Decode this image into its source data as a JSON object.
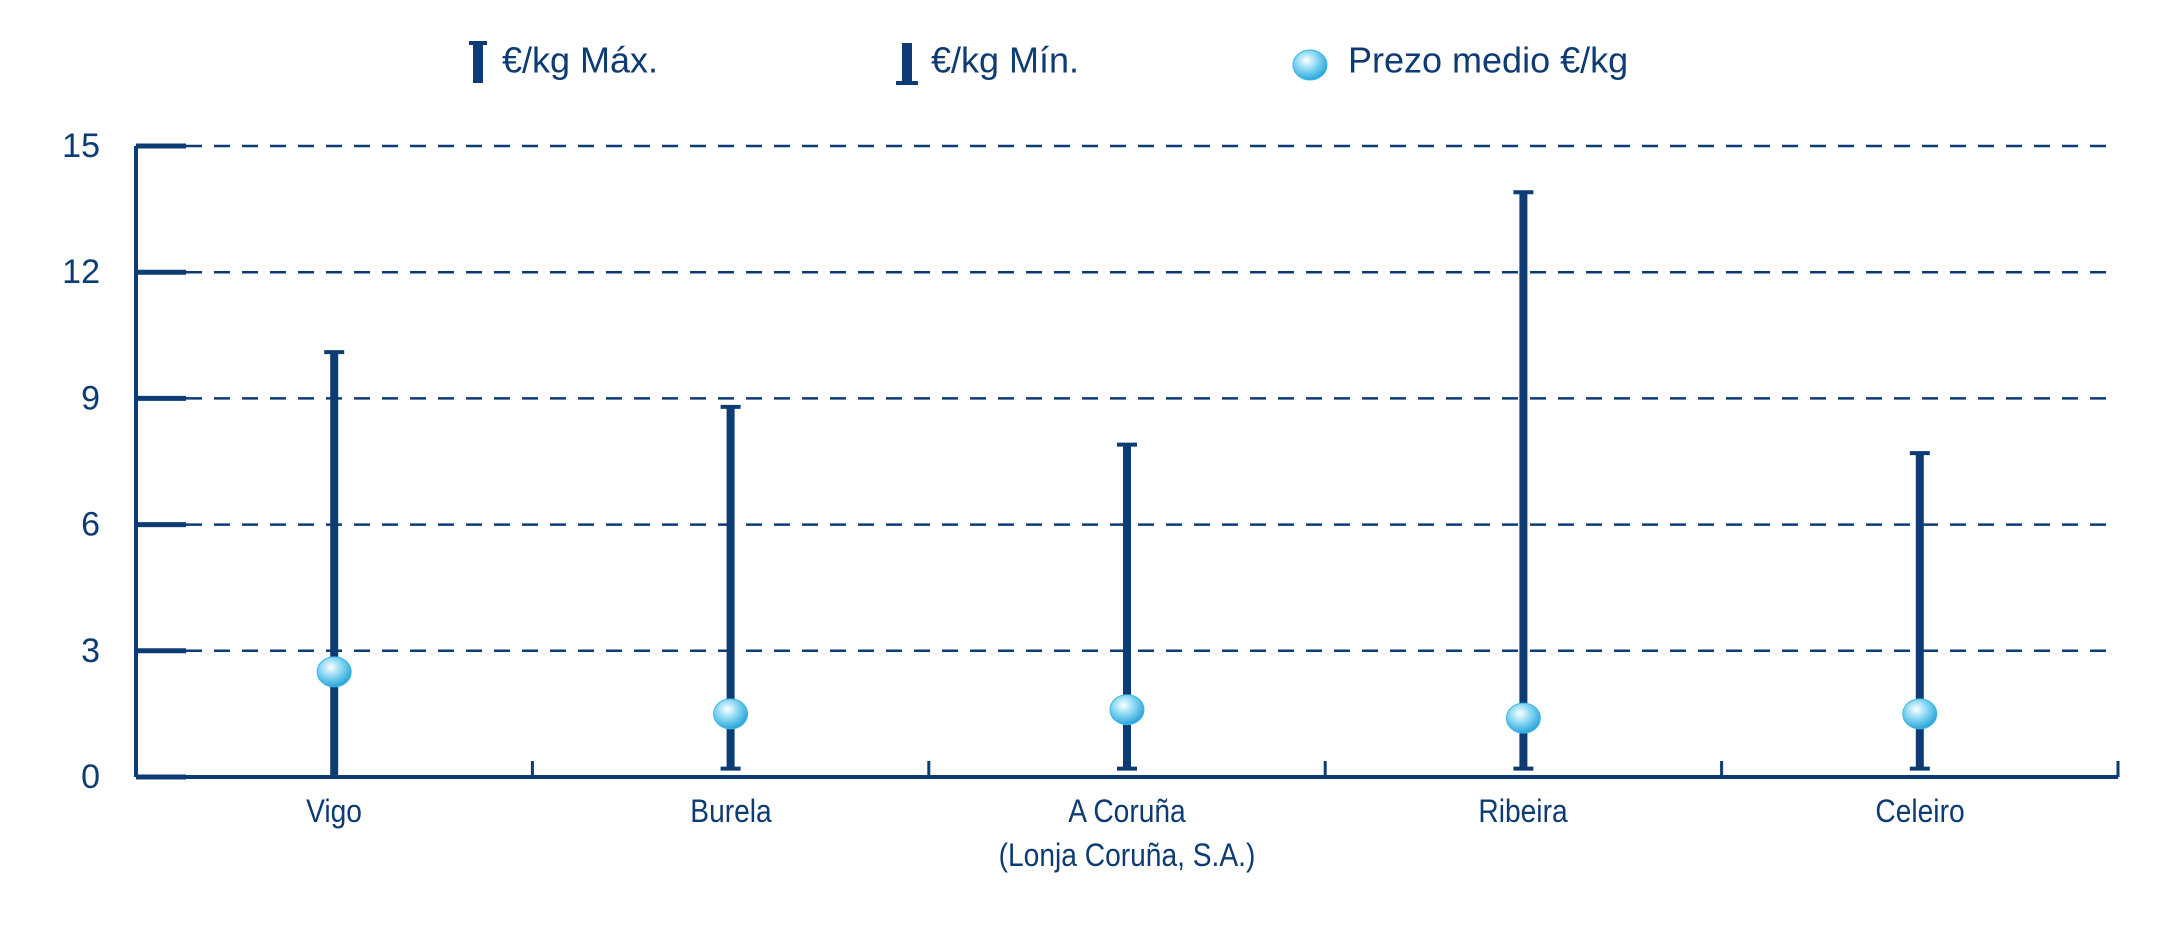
{
  "chart_data": {
    "type": "hilo",
    "categories": [
      "Vigo",
      "Burela",
      "A Coruña\n(Lonja Coruña, S.A.)",
      "Ribeira",
      "Celeiro"
    ],
    "series": [
      {
        "name": "€/kg Máx.",
        "color": "#0d3b73",
        "values": [
          10.1,
          8.8,
          7.9,
          13.9,
          7.7
        ]
      },
      {
        "name": "€/kg Mín.",
        "color": "#0d3b73",
        "values": [
          0,
          0.2,
          0.2,
          0.2,
          0.2
        ]
      },
      {
        "name": "Prezo medio €/kg",
        "color": "#3cb6e6",
        "values": [
          2.5,
          1.5,
          1.6,
          1.4,
          1.5
        ]
      }
    ],
    "ylim": [
      0,
      15
    ],
    "yticks": [
      0,
      3,
      6,
      9,
      12,
      15
    ],
    "grid": true
  }
}
